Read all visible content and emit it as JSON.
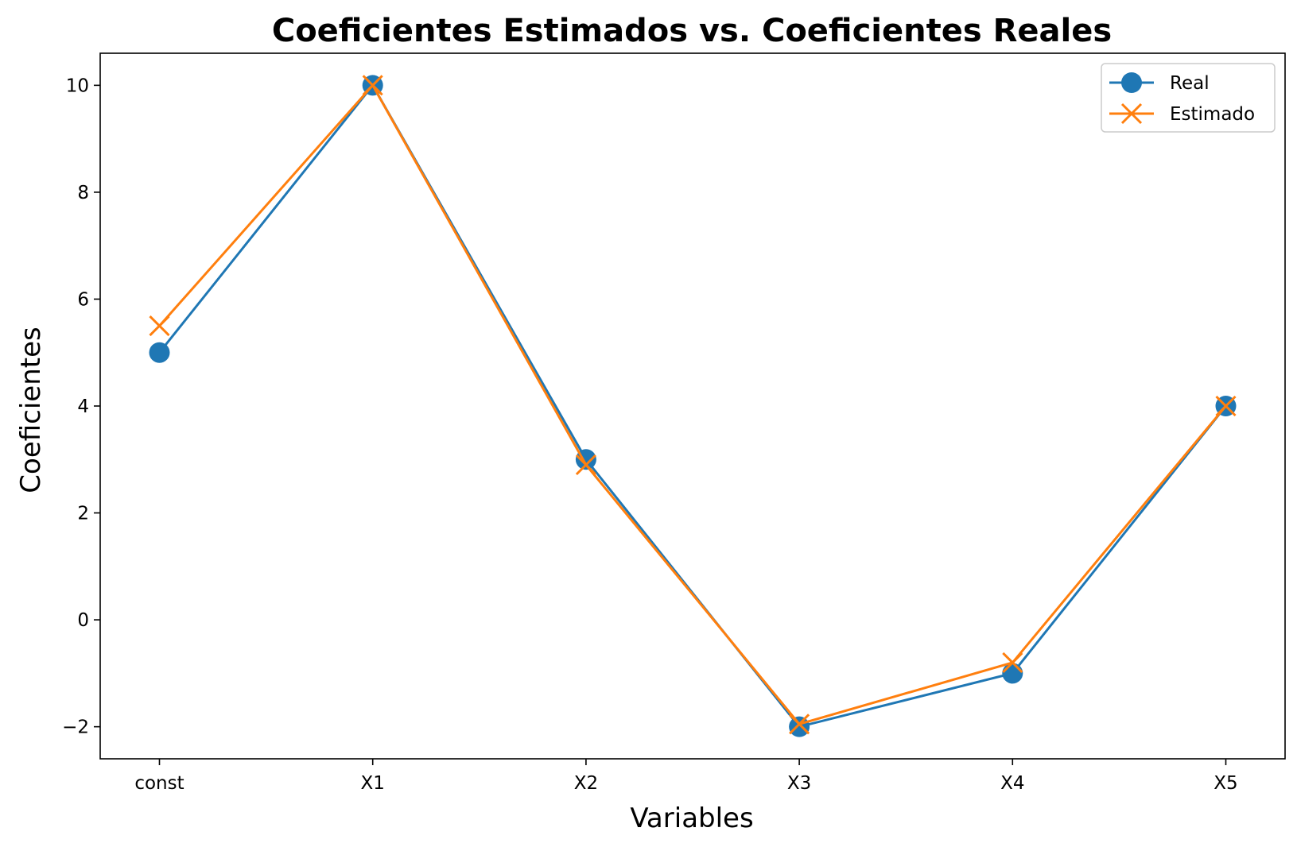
{
  "chart_data": {
    "type": "line",
    "title": "Coeficientes Estimados vs. Coeficientes Reales",
    "xlabel": "Variables",
    "ylabel": "Coeficientes",
    "categories": [
      "const",
      "X1",
      "X2",
      "X3",
      "X4",
      "X5"
    ],
    "yticks": [
      "−2",
      "0",
      "2",
      "4",
      "6",
      "8",
      "10"
    ],
    "ylim": [
      -2.6,
      10.6
    ],
    "grid": false,
    "legend_position": "top-right",
    "series": [
      {
        "name": "Real",
        "values": [
          5.0,
          10.0,
          3.0,
          -2.0,
          -1.0,
          4.0
        ],
        "color": "#1f77b4",
        "marker": "circle"
      },
      {
        "name": "Estimado",
        "values": [
          5.5,
          10.0,
          2.9,
          -1.95,
          -0.8,
          4.0
        ],
        "color": "#ff7f0e",
        "marker": "x"
      }
    ]
  }
}
